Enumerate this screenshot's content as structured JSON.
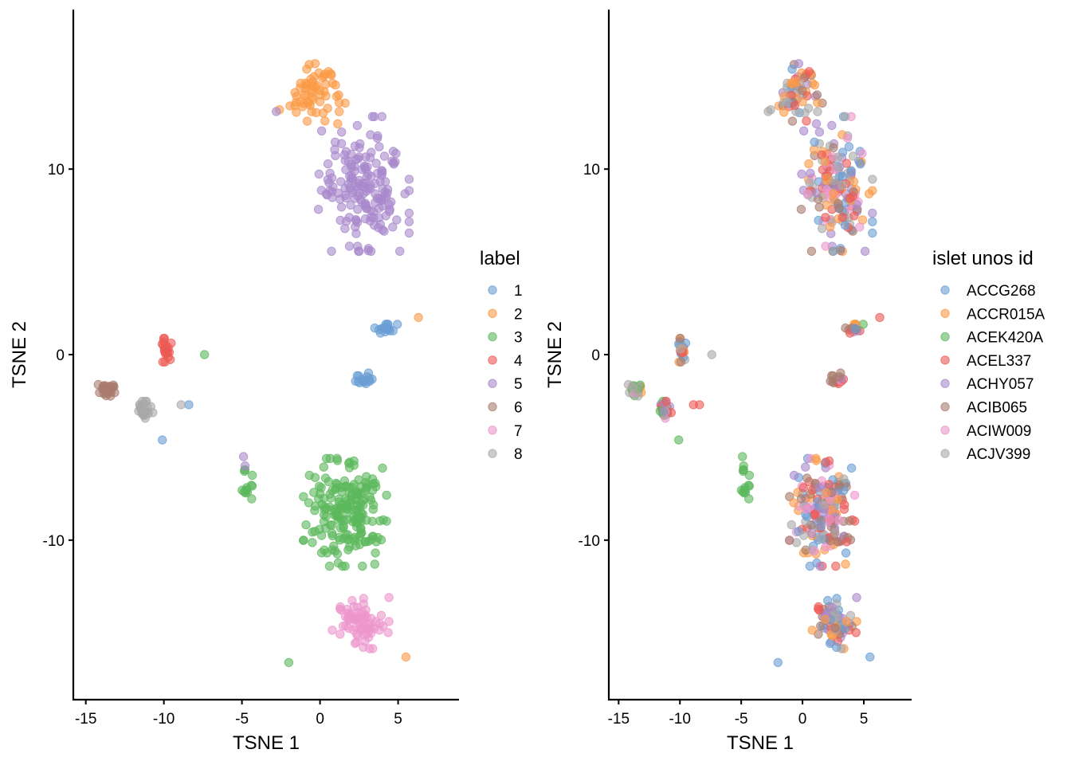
{
  "chart_data": {
    "type": "scatter",
    "panels": [
      {
        "id": "left",
        "xlabel": "TSNE 1",
        "ylabel": "TSNE 2",
        "xlim": [
          -15.8,
          8.9
        ],
        "ylim": [
          -18.6,
          18.6
        ],
        "xticks": [
          -15,
          -10,
          -5,
          0,
          5
        ],
        "yticks": [
          -10,
          0,
          10
        ],
        "color_by": "label",
        "legend": {
          "title": "label",
          "placement": "right",
          "entries": [
            "1",
            "2",
            "3",
            "4",
            "5",
            "6",
            "7",
            "8"
          ]
        }
      },
      {
        "id": "right",
        "xlabel": "TSNE 1",
        "ylabel": "TSNE 2",
        "xlim": [
          -15.8,
          8.9
        ],
        "ylim": [
          -18.6,
          18.6
        ],
        "xticks": [
          -15,
          -10,
          -5,
          0,
          5
        ],
        "yticks": [
          -10,
          0,
          10
        ],
        "color_by": "donor",
        "legend": {
          "title": "islet unos id",
          "placement": "right",
          "entries": [
            "ACCG268",
            "ACCR015A",
            "ACEK420A",
            "ACEL337",
            "ACHY057",
            "ACIB065",
            "ACIW009",
            "ACJV399"
          ]
        }
      }
    ],
    "palette": [
      "#6a9ed4",
      "#fb9a45",
      "#5cb85c",
      "#ec5a55",
      "#a888cc",
      "#a97c6e",
      "#ec96cc",
      "#a9a9a9"
    ],
    "point_alpha": 0.6,
    "clusters": [
      {
        "label": "2",
        "center": [
          -0.2,
          14.2
        ],
        "spread": [
          1.5,
          1.6
        ],
        "n": 60,
        "donors": [
          3,
          0,
          7,
          4,
          1,
          5
        ]
      },
      {
        "label": "5",
        "center": [
          2.8,
          9.2
        ],
        "spread": [
          2.4,
          3.0
        ],
        "n": 170,
        "donors": [
          0,
          3,
          5,
          7,
          6,
          4,
          1
        ]
      },
      {
        "label": "1",
        "center": [
          4.2,
          1.4
        ],
        "spread": [
          0.8,
          0.2
        ],
        "n": 18,
        "donors": [
          0,
          3,
          5,
          4,
          1,
          2
        ]
      },
      {
        "label": "1",
        "center": [
          3.0,
          -1.3
        ],
        "spread": [
          0.6,
          0.35
        ],
        "n": 16,
        "donors": [
          6,
          5,
          0,
          3,
          4
        ]
      },
      {
        "label": "4",
        "center": [
          -9.8,
          0.3
        ],
        "spread": [
          0.25,
          0.6
        ],
        "n": 22,
        "donors": [
          0,
          6,
          5,
          7,
          3,
          1
        ]
      },
      {
        "label": "6",
        "center": [
          -13.6,
          -1.9
        ],
        "spread": [
          0.5,
          0.35
        ],
        "n": 26,
        "donors": [
          2,
          6,
          7,
          1
        ]
      },
      {
        "label": "8",
        "center": [
          -11.2,
          -3.0
        ],
        "spread": [
          0.5,
          0.4
        ],
        "n": 24,
        "donors": [
          6,
          4,
          5,
          3,
          7,
          2
        ]
      },
      {
        "label": "3",
        "center": [
          1.6,
          -8.5
        ],
        "spread": [
          2.2,
          2.4
        ],
        "n": 190,
        "donors": [
          0,
          1,
          3,
          4,
          5,
          6,
          7
        ]
      },
      {
        "label": "3",
        "center": [
          -4.7,
          -7.3
        ],
        "spread": [
          0.3,
          0.9
        ],
        "n": 14,
        "donors": [
          2
        ]
      },
      {
        "label": "7",
        "center": [
          2.6,
          -14.4
        ],
        "spread": [
          1.5,
          1.2
        ],
        "n": 70,
        "donors": [
          0,
          1,
          3,
          4,
          5,
          7
        ]
      }
    ],
    "singletons": [
      {
        "x": -7.4,
        "y": 0.0,
        "label": "3",
        "donor": 7
      },
      {
        "x": -10.1,
        "y": -4.6,
        "label": "1",
        "donor": 2
      },
      {
        "x": -8.4,
        "y": -2.7,
        "label": "1",
        "donor": 3
      },
      {
        "x": -8.9,
        "y": -2.7,
        "label": "8",
        "donor": 3
      },
      {
        "x": 6.3,
        "y": 2.0,
        "label": "2",
        "donor": 3
      },
      {
        "x": 5.5,
        "y": -16.3,
        "label": "2",
        "donor": 0
      },
      {
        "x": -2.0,
        "y": -16.6,
        "label": "3",
        "donor": 0
      },
      {
        "x": -2.6,
        "y": 13.2,
        "label": "2",
        "donor": 7
      },
      {
        "x": -2.8,
        "y": 13.1,
        "label": "5",
        "donor": 7
      },
      {
        "x": -4.9,
        "y": -5.5,
        "label": "5",
        "donor": 2
      },
      {
        "x": -4.8,
        "y": -6.0,
        "label": "5",
        "donor": 2
      }
    ]
  }
}
